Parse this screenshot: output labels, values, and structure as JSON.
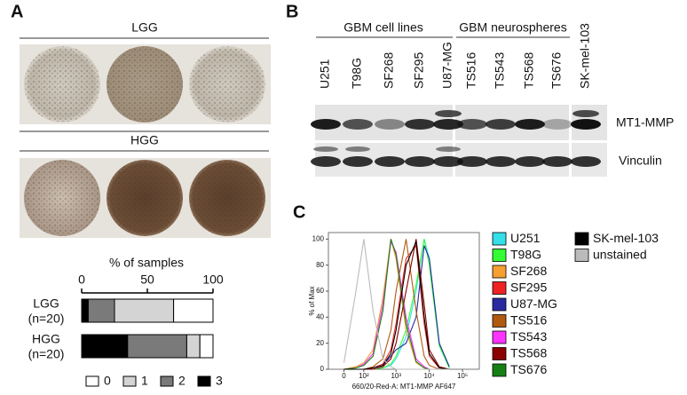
{
  "panel_a": {
    "label": "A",
    "rows": [
      "LGG",
      "HGG"
    ]
  },
  "panel_b": {
    "label": "B",
    "groups": [
      "GBM cell lines",
      "GBM neurospheres"
    ],
    "lanes": [
      "U251",
      "T98G",
      "SF268",
      "SF295",
      "U87-MG",
      "TS516",
      "TS543",
      "TS568",
      "TS676",
      "SK-mel-103"
    ],
    "bands": [
      "MT1-MMP",
      "Vinculin"
    ]
  },
  "panel_c": {
    "label": "C"
  },
  "chart_data": [
    {
      "type": "bar",
      "stacked": true,
      "orientation": "horizontal",
      "title": "% of samples",
      "categories": [
        [
          "LGG",
          "(n=20)"
        ],
        [
          "HGG",
          "(n=20)"
        ]
      ],
      "series": [
        {
          "name": "0",
          "color": "#ffffff",
          "values": [
            30,
            10
          ]
        },
        {
          "name": "1",
          "color": "#d4d4d4",
          "values": [
            45,
            10
          ]
        },
        {
          "name": "2",
          "color": "#7a7a7a",
          "values": [
            20,
            45
          ]
        },
        {
          "name": "3",
          "color": "#000000",
          "values": [
            5,
            35
          ]
        }
      ],
      "xlim": [
        0,
        100
      ],
      "xticks": [
        0,
        50,
        100
      ]
    },
    {
      "type": "line",
      "ylabel": "% of Max",
      "xlabel": "660/20-Red-A: MT1-MMP AF647",
      "xscale": "biexponential",
      "x": [
        0,
        50,
        100,
        200,
        400,
        700,
        1000,
        2000,
        4000,
        7000,
        10000,
        20000,
        40000
      ],
      "xlim": [
        -70,
        320000
      ],
      "xticks": [
        0,
        {
          "value": 100,
          "label": "10²"
        },
        {
          "value": 1000,
          "label": "10³"
        },
        {
          "value": 10000,
          "label": "10⁴"
        },
        {
          "value": 100000,
          "label": "10⁵"
        }
      ],
      "ylim": [
        0,
        105
      ],
      "yticks": [
        0,
        20,
        40,
        60,
        80,
        100
      ],
      "series": [
        {
          "name": "U251",
          "color": "#33e0e8",
          "values": [
            0,
            0,
            0,
            0,
            1,
            3,
            8,
            25,
            60,
            100,
            85,
            20,
            2
          ]
        },
        {
          "name": "T98G",
          "color": "#33ff33",
          "values": [
            0,
            0,
            0,
            0,
            1,
            4,
            10,
            30,
            65,
            100,
            80,
            18,
            1
          ]
        },
        {
          "name": "SF268",
          "color": "#f5a030",
          "values": [
            0,
            2,
            5,
            15,
            55,
            100,
            85,
            30,
            5,
            1,
            0,
            0,
            0
          ]
        },
        {
          "name": "SF295",
          "color": "#ee2222",
          "values": [
            0,
            0,
            0,
            1,
            4,
            15,
            35,
            85,
            95,
            35,
            10,
            1,
            0
          ]
        },
        {
          "name": "U87-MG",
          "color": "#2a2aa0",
          "values": [
            0,
            0,
            0,
            1,
            3,
            10,
            15,
            20,
            40,
            95,
            85,
            20,
            2
          ]
        },
        {
          "name": "TS516",
          "color": "#b05a10",
          "values": [
            0,
            0,
            0,
            2,
            8,
            30,
            60,
            100,
            45,
            10,
            3,
            0,
            0
          ]
        },
        {
          "name": "TS543",
          "color": "#ff33ff",
          "values": [
            0,
            1,
            4,
            12,
            50,
            98,
            90,
            40,
            8,
            2,
            0,
            0,
            0
          ]
        },
        {
          "name": "TS568",
          "color": "#8b0000",
          "values": [
            0,
            0,
            0,
            0,
            2,
            8,
            20,
            60,
            100,
            50,
            15,
            2,
            0
          ]
        },
        {
          "name": "TS676",
          "color": "#148014",
          "values": [
            0,
            1,
            3,
            10,
            45,
            100,
            88,
            35,
            6,
            1,
            0,
            0,
            0
          ]
        },
        {
          "name": "SK-mel-103",
          "color": "#000000",
          "values": [
            0,
            0,
            0,
            1,
            3,
            12,
            30,
            80,
            98,
            40,
            12,
            1,
            0
          ]
        },
        {
          "name": "unstained",
          "color": "#bbbbbb",
          "values": [
            5,
            60,
            100,
            45,
            8,
            2,
            0,
            0,
            0,
            0,
            0,
            0,
            0
          ]
        }
      ]
    }
  ]
}
